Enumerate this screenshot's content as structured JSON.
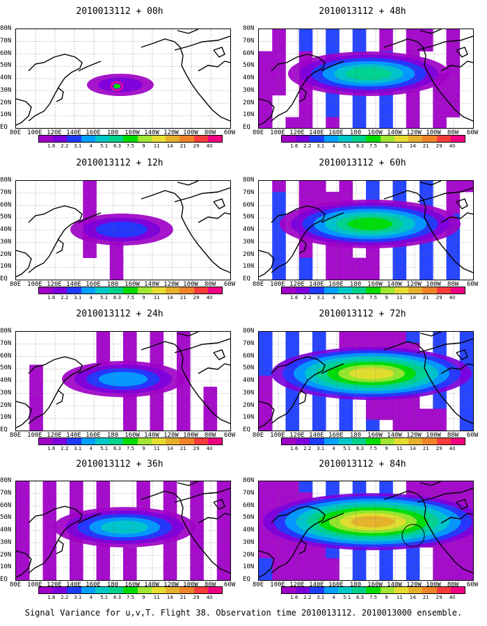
{
  "caption": "Signal Variance for u,v,T. Flight 38. Observation time 2010013112. 2010013000 ensemble.",
  "lat_labels": [
    "80N",
    "70N",
    "60N",
    "50N",
    "40N",
    "30N",
    "20N",
    "10N",
    "EQ"
  ],
  "lon_labels": [
    "80E",
    "100E",
    "120E",
    "140E",
    "160E",
    "180",
    "160W",
    "140W",
    "120W",
    "100W",
    "80W",
    "60W"
  ],
  "colorbar": {
    "levels": [
      "1.6",
      "2.2",
      "3.1",
      "4",
      "5.1",
      "6.3",
      "7.5",
      "9",
      "11",
      "14",
      "21",
      "29",
      "40"
    ],
    "colors": [
      "#a000c8",
      "#7d00dc",
      "#1e3cff",
      "#00a0ff",
      "#00c8c8",
      "#00d28c",
      "#00dc00",
      "#a0e632",
      "#e6dc32",
      "#e6af2d",
      "#f08228",
      "#fa3c3c",
      "#f00082"
    ]
  },
  "panels": [
    {
      "id": "p00",
      "title": "2010013112 + 00h",
      "intensity": 0
    },
    {
      "id": "p12",
      "title": "2010013112 + 12h",
      "intensity": 1
    },
    {
      "id": "p24",
      "title": "2010013112 + 24h",
      "intensity": 2
    },
    {
      "id": "p36",
      "title": "2010013112 + 36h",
      "intensity": 3
    },
    {
      "id": "p48",
      "title": "2010013112 + 48h",
      "intensity": 4
    },
    {
      "id": "p60",
      "title": "2010013112 + 60h",
      "intensity": 5
    },
    {
      "id": "p72",
      "title": "2010013112 + 72h",
      "intensity": 6
    },
    {
      "id": "p84",
      "title": "2010013112 + 84h",
      "intensity": 7
    }
  ]
}
